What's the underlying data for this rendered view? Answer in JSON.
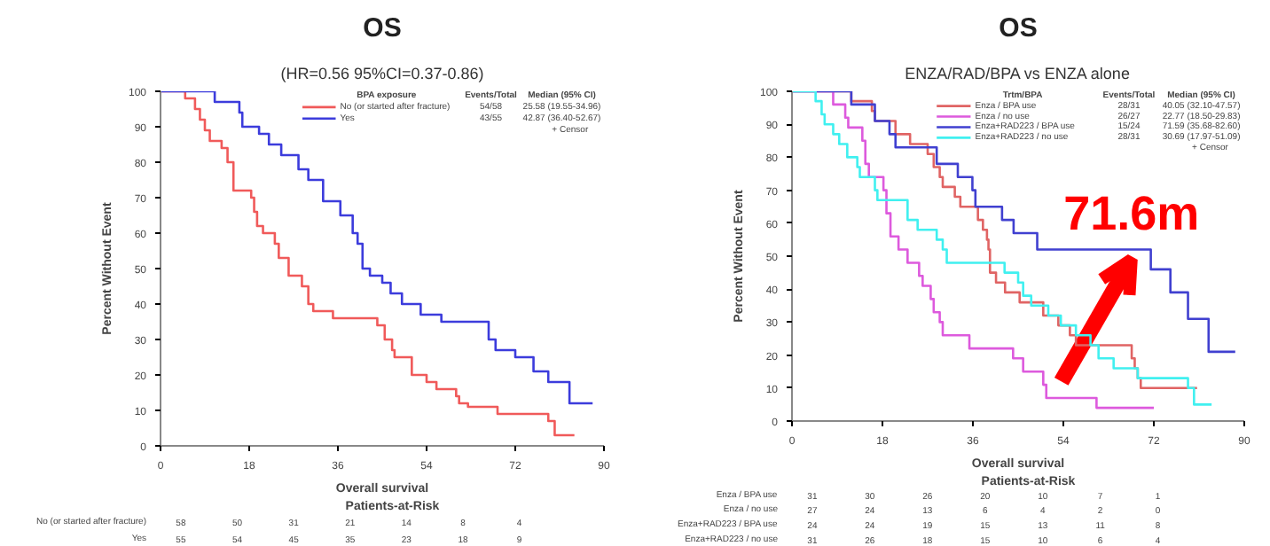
{
  "chart_data": [
    {
      "type": "step",
      "title": "OS",
      "subtitle": "(HR=0.56 95%CI=0.37-0.86)",
      "xlabel": "Overall survival",
      "ylabel": "Percent Without Event",
      "legend_title": "BPA exposure",
      "legend": "top",
      "xlim": [
        0,
        90
      ],
      "ylim": [
        0,
        100
      ],
      "xticks": [
        0,
        18,
        36,
        54,
        72,
        90
      ],
      "yticks": [
        0,
        10,
        20,
        30,
        40,
        50,
        60,
        70,
        80,
        90,
        100
      ],
      "series": [
        {
          "name": "No (or started after fracture)",
          "color": "#f05a5a",
          "x": [
            0,
            5,
            7,
            8,
            9,
            10,
            12.4,
            13.6,
            14.8,
            18.4,
            19,
            19.6,
            20.8,
            23.2,
            24,
            26,
            28.7,
            30,
            31,
            35,
            44,
            45.5,
            47,
            47.5,
            51,
            54,
            56,
            60,
            60.6,
            62.4,
            68.4,
            78.7,
            80,
            84
          ],
          "values": [
            100,
            98,
            95,
            92,
            89,
            86,
            84,
            80,
            72,
            70,
            66,
            62,
            60,
            57,
            53,
            48,
            45,
            40,
            38,
            36,
            34,
            30,
            27,
            25,
            20,
            18,
            16,
            14,
            12,
            11,
            9,
            7,
            3,
            3
          ]
        },
        {
          "name": "Yes",
          "color": "#3c3cdc",
          "x": [
            0,
            11,
            16,
            16.6,
            20,
            22,
            24.5,
            28,
            30,
            33,
            36.5,
            39,
            40,
            41,
            42.5,
            45,
            46.7,
            49,
            52.8,
            57,
            66.6,
            68,
            72,
            75.7,
            78.7,
            83,
            87.7
          ],
          "values": [
            100,
            97,
            94,
            90,
            88,
            85,
            82,
            78,
            75,
            69,
            65,
            60,
            57,
            50,
            48,
            46,
            43,
            40,
            37,
            35,
            30,
            27,
            25,
            21,
            18,
            12,
            12
          ]
        }
      ],
      "annotations": [
        "Events/Total",
        "Median (95% CI)",
        "54/58",
        "25.58 (19.55-34.96)",
        "43/55",
        "42.87 (36.40-52.67)",
        "+  Censor",
        "Patients-at-Risk",
        "58",
        "50",
        "31",
        "21",
        "14",
        "8",
        "4",
        "55",
        "54",
        "45",
        "35",
        "23",
        "18",
        "9"
      ]
    },
    {
      "type": "step",
      "title": "OS",
      "subtitle": "ENZA/RAD/BPA vs ENZA alone",
      "xlabel": "Overall survival",
      "ylabel": "Percent Without Event",
      "legend_title": "Trtm/BPA",
      "legend": "top",
      "xlim": [
        0,
        90
      ],
      "ylim": [
        0,
        100
      ],
      "xticks": [
        0,
        18,
        36,
        54,
        72,
        90
      ],
      "yticks": [
        0,
        10,
        20,
        30,
        40,
        50,
        60,
        70,
        80,
        90,
        100
      ],
      "series": [
        {
          "name": "Enza / BPA use",
          "color": "#e06464",
          "x": [
            0,
            11.8,
            15.9,
            16.5,
            20.6,
            23.5,
            27,
            28.2,
            29.4,
            30,
            32.4,
            33.5,
            37,
            38,
            38.8,
            39.1,
            39.4,
            40.6,
            42.4,
            45.3,
            50,
            53,
            55.3,
            56.5,
            67.6,
            68.2,
            68.8,
            69.4,
            80.6
          ],
          "values": [
            100,
            97,
            94,
            91,
            87,
            84,
            81,
            77,
            74,
            71,
            68,
            65,
            61,
            58,
            55,
            52,
            45,
            42,
            39,
            36,
            32,
            29,
            26,
            23,
            19,
            16,
            13,
            10,
            10
          ]
        },
        {
          "name": "Enza / no use",
          "color": "#dd5add",
          "x": [
            0,
            8.2,
            10.6,
            11.2,
            14,
            14.6,
            15.3,
            18.2,
            18.8,
            19.6,
            21.2,
            23,
            25.3,
            26,
            27.6,
            28.2,
            29.4,
            30,
            35.3,
            44,
            46,
            50,
            50.6,
            60.6,
            72
          ],
          "values": [
            100,
            96,
            92,
            89,
            85,
            78,
            74,
            70,
            63,
            56,
            52,
            48,
            44,
            41,
            37,
            33,
            30,
            26,
            22,
            19,
            15,
            11,
            7,
            4,
            4
          ]
        },
        {
          "name": "Enza+RAD223 / BPA use",
          "color": "#4040d0",
          "x": [
            0,
            11.8,
            16.5,
            19.4,
            20.6,
            28.8,
            33,
            35.9,
            36.5,
            41.8,
            44.1,
            48.8,
            71.4,
            75.3,
            78.8,
            82.9,
            88.2
          ],
          "values": [
            100,
            96,
            91,
            87,
            83,
            78,
            74,
            70,
            65,
            61,
            57,
            52,
            46,
            39,
            31,
            21,
            21
          ]
        },
        {
          "name": "Enza+RAD223 / no use",
          "color": "#40f0f0",
          "x": [
            0,
            4.7,
            5.9,
            6.5,
            8.2,
            9.4,
            11,
            13,
            13.5,
            16.5,
            17,
            23,
            25,
            28.8,
            30,
            30.8,
            42.3,
            45,
            46,
            47.6,
            51,
            53.5,
            56.5,
            59.4,
            61,
            64,
            68.8,
            78.8,
            80,
            83.5
          ],
          "values": [
            100,
            97,
            93,
            90,
            87,
            84,
            80,
            77,
            74,
            70,
            67,
            61,
            58,
            55,
            52,
            48,
            45,
            42,
            38,
            35,
            32,
            29,
            26,
            23,
            19,
            16,
            13,
            10,
            5,
            5
          ]
        }
      ],
      "annotations": [
        "Events/Total",
        "Median (95% CI)",
        "28/31",
        "40.05 (32.10-47.57)",
        "26/27",
        "22.77 (18.50-29.83)",
        "15/24",
        "71.59 (35.68-82.60)",
        "28/31",
        "30.69 (17.97-51.09)",
        "+  Censor",
        "Patients-at-Risk",
        "31",
        "30",
        "26",
        "20",
        "10",
        "7",
        "1",
        "27",
        "24",
        "13",
        "6",
        "4",
        "2",
        "0",
        "24",
        "24",
        "19",
        "15",
        "13",
        "11",
        "8",
        "31",
        "26",
        "18",
        "15",
        "10",
        "6",
        "4",
        {
          "text": "71.6m",
          "x": 71.6,
          "y": 52
        }
      ]
    }
  ]
}
